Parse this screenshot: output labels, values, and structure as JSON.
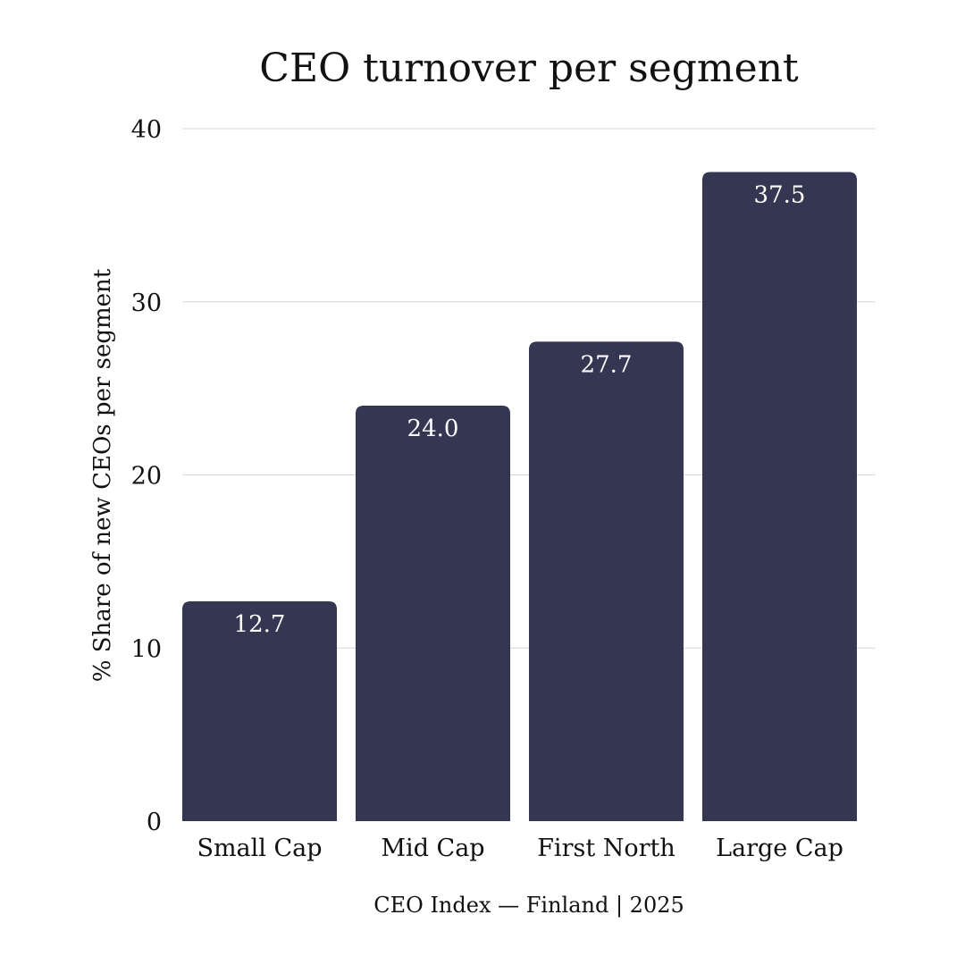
{
  "chart_data": {
    "type": "bar",
    "title": "CEO turnover per segment",
    "xlabel": "CEO Index — Finland | 2025",
    "ylabel": "% Share of new CEOs per segment",
    "categories": [
      "Small Cap",
      "Mid Cap",
      "First North",
      "Large Cap"
    ],
    "values": [
      12.7,
      24.0,
      27.7,
      37.5
    ],
    "data_labels": [
      "12.7",
      "24.0",
      "27.7",
      "37.5"
    ],
    "ylim": [
      0,
      40
    ],
    "yticks": [
      0,
      10,
      20,
      30,
      40
    ],
    "grid": true,
    "bar_color": "#343652",
    "data_label_color": "#ffffff"
  }
}
